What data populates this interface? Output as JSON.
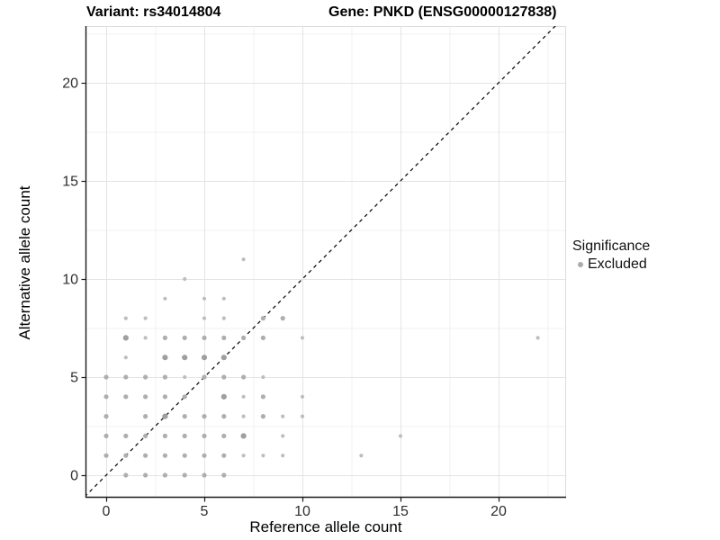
{
  "header": {
    "variant_title": "Variant: rs34014804",
    "gene_title": "Gene: PNKD (ENSG00000127838)"
  },
  "chart_data": {
    "type": "scatter",
    "xlabel": "Reference allele count",
    "ylabel": "Alternative allele count",
    "x_ticks": [
      0,
      5,
      10,
      15,
      20
    ],
    "y_ticks": [
      0,
      5,
      10,
      15,
      20
    ],
    "x_minor": [
      2.5,
      7.5,
      12.5,
      17.5,
      22.5
    ],
    "y_minor": [
      2.5,
      7.5,
      12.5,
      17.5,
      22.5
    ],
    "xlim": [
      -1.1,
      23.4
    ],
    "ylim": [
      -1.1,
      22.9
    ],
    "grid": "major+minor",
    "identity_line": {
      "slope": 1,
      "intercept": 0,
      "style": "dashed",
      "color": "#000000"
    },
    "legend": {
      "title": "Significance",
      "position": "right",
      "items": [
        {
          "label": "Excluded",
          "color": "#ababab"
        }
      ]
    },
    "point_format": [
      "x",
      "y",
      "size_class"
    ],
    "series": [
      {
        "name": "Excluded",
        "points": [
          [
            1,
            0,
            2
          ],
          [
            2,
            0,
            2
          ],
          [
            3,
            0,
            2
          ],
          [
            4,
            0,
            2
          ],
          [
            5,
            0,
            2
          ],
          [
            6,
            0,
            2
          ],
          [
            0,
            1,
            2
          ],
          [
            1,
            1,
            2
          ],
          [
            2,
            1,
            2
          ],
          [
            3,
            1,
            2
          ],
          [
            4,
            1,
            2
          ],
          [
            5,
            1,
            2
          ],
          [
            6,
            1,
            2
          ],
          [
            7,
            1,
            1
          ],
          [
            8,
            1,
            1
          ],
          [
            9,
            1,
            1
          ],
          [
            13,
            1,
            1
          ],
          [
            0,
            2,
            2
          ],
          [
            1,
            2,
            2
          ],
          [
            2,
            2,
            2
          ],
          [
            3,
            2,
            2
          ],
          [
            4,
            2,
            2
          ],
          [
            5,
            2,
            2
          ],
          [
            6,
            2,
            2
          ],
          [
            7,
            2,
            3
          ],
          [
            9,
            2,
            1
          ],
          [
            15,
            2,
            1
          ],
          [
            0,
            3,
            2
          ],
          [
            2,
            3,
            2
          ],
          [
            3,
            3,
            3
          ],
          [
            4,
            3,
            2
          ],
          [
            5,
            3,
            2
          ],
          [
            6,
            3,
            2
          ],
          [
            7,
            3,
            1
          ],
          [
            8,
            3,
            2
          ],
          [
            9,
            3,
            1
          ],
          [
            10,
            3,
            1
          ],
          [
            0,
            4,
            2
          ],
          [
            1,
            4,
            2
          ],
          [
            2,
            4,
            2
          ],
          [
            3,
            4,
            2
          ],
          [
            4,
            4,
            2
          ],
          [
            6,
            4,
            3
          ],
          [
            7,
            4,
            1
          ],
          [
            8,
            4,
            2
          ],
          [
            10,
            4,
            1
          ],
          [
            0,
            5,
            2
          ],
          [
            1,
            5,
            2
          ],
          [
            2,
            5,
            2
          ],
          [
            3,
            5,
            2
          ],
          [
            4,
            5,
            1
          ],
          [
            5,
            5,
            2
          ],
          [
            6,
            5,
            2
          ],
          [
            7,
            5,
            2
          ],
          [
            8,
            5,
            1
          ],
          [
            1,
            6,
            1
          ],
          [
            3,
            6,
            3
          ],
          [
            4,
            6,
            3
          ],
          [
            5,
            6,
            3
          ],
          [
            6,
            6,
            3
          ],
          [
            1,
            7,
            3
          ],
          [
            2,
            7,
            1
          ],
          [
            3,
            7,
            2
          ],
          [
            4,
            7,
            2
          ],
          [
            5,
            7,
            2
          ],
          [
            6,
            7,
            2
          ],
          [
            7,
            7,
            2
          ],
          [
            8,
            7,
            2
          ],
          [
            10,
            7,
            1
          ],
          [
            22,
            7,
            1
          ],
          [
            1,
            8,
            1
          ],
          [
            2,
            8,
            1
          ],
          [
            5,
            8,
            1
          ],
          [
            6,
            8,
            1
          ],
          [
            8,
            8,
            2
          ],
          [
            9,
            8,
            2
          ],
          [
            3,
            9,
            1
          ],
          [
            5,
            9,
            1
          ],
          [
            6,
            9,
            1
          ],
          [
            4,
            10,
            1
          ],
          [
            7,
            11,
            1
          ]
        ]
      }
    ]
  },
  "colors": {
    "background": "#ffffff",
    "grid_major": "#e4e4e4",
    "grid_minor": "#f1f1f1",
    "axis_line": "#1a1a1a",
    "panel_border": "#dcdcdc",
    "tick_label": "#2e2e2e",
    "point_small": "#bdbdbd",
    "point_medium": "#aeaeae",
    "point_large": "#9f9f9f"
  }
}
